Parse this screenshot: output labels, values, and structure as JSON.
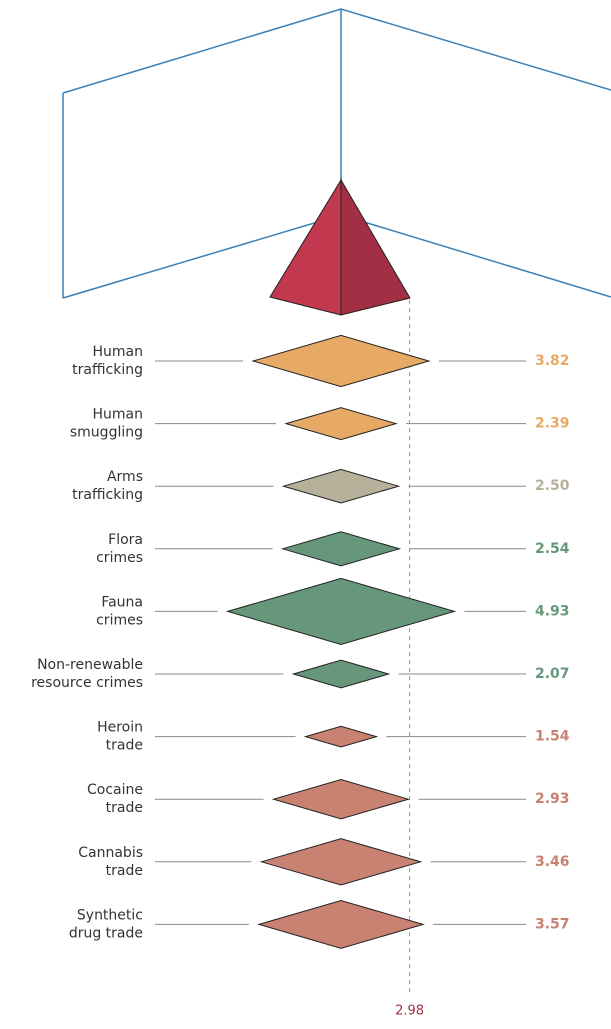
{
  "chart_data": {
    "type": "diamond",
    "categories": [
      [
        "Human",
        "trafficking"
      ],
      [
        "Human",
        "smuggling"
      ],
      [
        "Arms",
        "trafficking"
      ],
      [
        "Flora",
        "crimes"
      ],
      [
        "Fauna",
        "crimes"
      ],
      [
        "Non-renewable",
        "resource crimes"
      ],
      [
        "Heroin",
        "trade"
      ],
      [
        "Cocaine",
        "trade"
      ],
      [
        "Cannabis",
        "trade"
      ],
      [
        "Synthetic",
        "drug trade"
      ]
    ],
    "values": [
      3.82,
      2.39,
      2.5,
      2.54,
      4.93,
      2.07,
      1.54,
      2.93,
      3.46,
      3.57
    ],
    "value_labels": [
      "3.82",
      "2.39",
      "2.50",
      "2.54",
      "4.93",
      "2.07",
      "1.54",
      "2.93",
      "3.46",
      "3.57"
    ],
    "colors": [
      "#e6aa66",
      "#e6aa66",
      "#b7b09b",
      "#66977b",
      "#66977b",
      "#66977b",
      "#c98172",
      "#c98172",
      "#c98172",
      "#c98172"
    ],
    "reference": 2.98
  }
}
